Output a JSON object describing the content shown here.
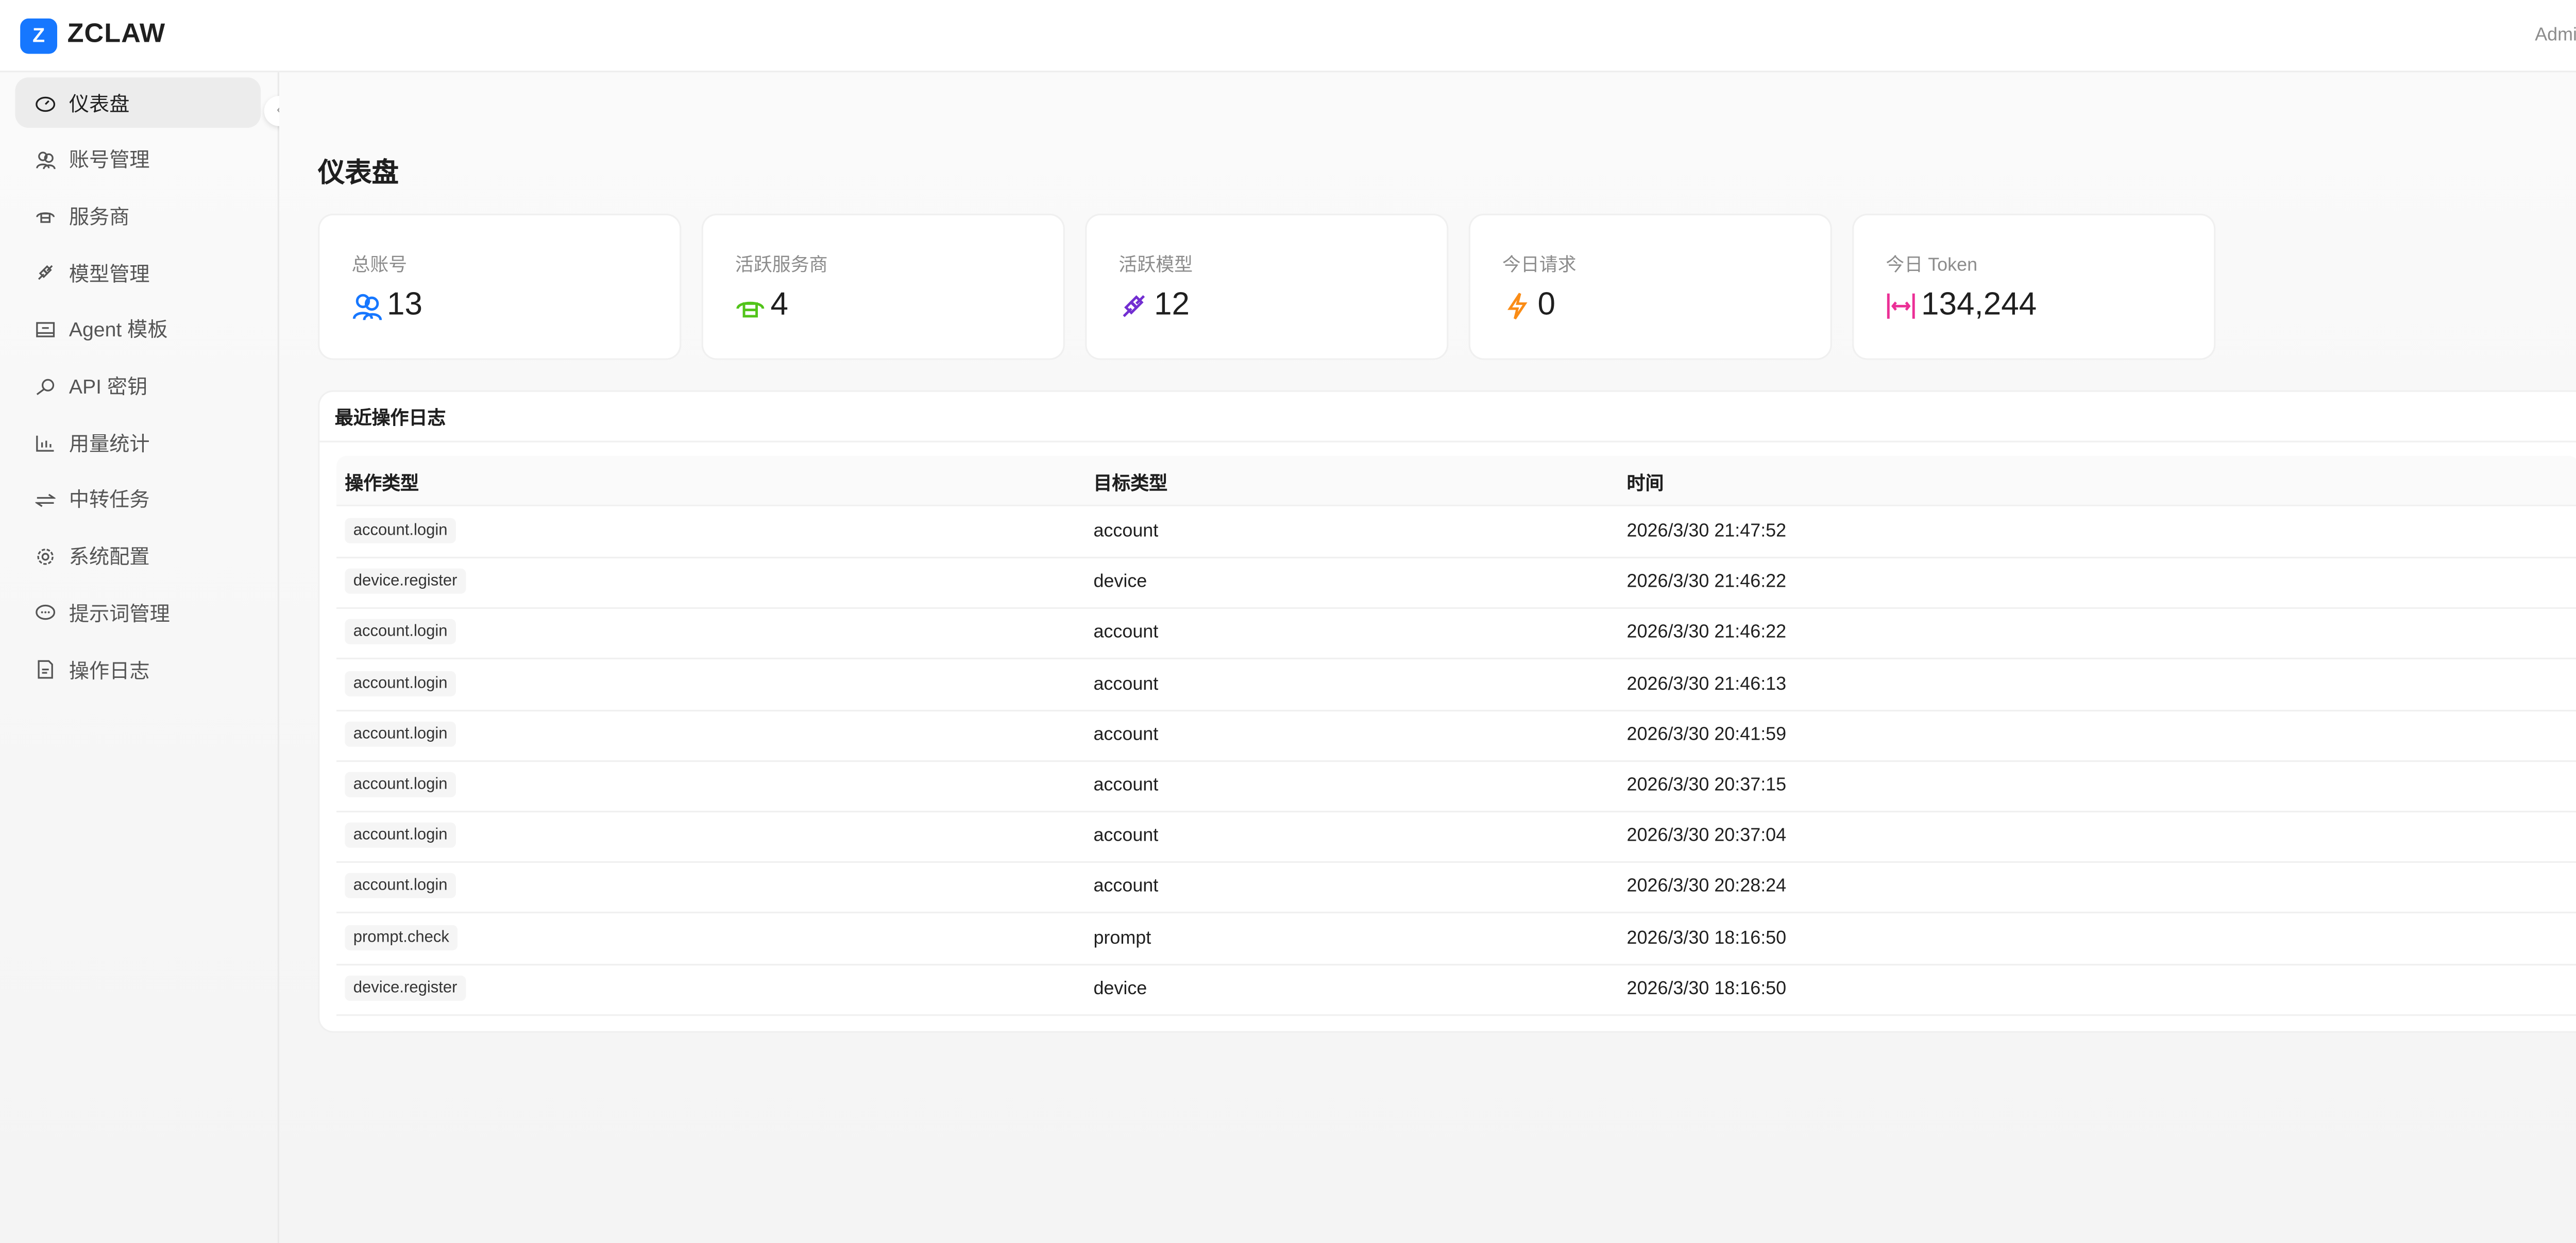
{
  "app": {
    "logo_letter": "Z",
    "brand": "ZCLAW",
    "user": "Admin"
  },
  "sidebar": {
    "items": [
      {
        "label": "仪表盘",
        "icon": "dashboard-icon",
        "active": true
      },
      {
        "label": "账号管理",
        "icon": "users-icon"
      },
      {
        "label": "服务商",
        "icon": "cloud-server-icon"
      },
      {
        "label": "模型管理",
        "icon": "api-plug-icon"
      },
      {
        "label": "Agent 模板",
        "icon": "template-icon"
      },
      {
        "label": "API 密钥",
        "icon": "key-icon"
      },
      {
        "label": "用量统计",
        "icon": "bar-chart-icon"
      },
      {
        "label": "中转任务",
        "icon": "swap-icon"
      },
      {
        "label": "系统配置",
        "icon": "gear-icon"
      },
      {
        "label": "提示词管理",
        "icon": "message-icon"
      },
      {
        "label": "操作日志",
        "icon": "file-text-icon"
      }
    ],
    "collapse_glyph": "‹"
  },
  "page": {
    "title": "仪表盘"
  },
  "stats": [
    {
      "label": "总账号",
      "value": "13",
      "icon": "users-icon",
      "color": "#1677ff"
    },
    {
      "label": "活跃服务商",
      "value": "4",
      "icon": "cloud-server-icon",
      "color": "#52c41a"
    },
    {
      "label": "活跃模型",
      "value": "12",
      "icon": "api-plug-icon",
      "color": "#722ed1"
    },
    {
      "label": "今日请求",
      "value": "0",
      "icon": "thunderbolt-icon",
      "color": "#fa8c16"
    },
    {
      "label": "今日 Token",
      "value": "134,244",
      "icon": "column-width-icon",
      "color": "#eb2f96"
    }
  ],
  "log": {
    "title": "最近操作日志",
    "columns": [
      "操作类型",
      "目标类型",
      "时间"
    ],
    "rows": [
      [
        "account.login",
        "account",
        "2026/3/30 21:47:52"
      ],
      [
        "device.register",
        "device",
        "2026/3/30 21:46:22"
      ],
      [
        "account.login",
        "account",
        "2026/3/30 21:46:22"
      ],
      [
        "account.login",
        "account",
        "2026/3/30 21:46:13"
      ],
      [
        "account.login",
        "account",
        "2026/3/30 20:41:59"
      ],
      [
        "account.login",
        "account",
        "2026/3/30 20:37:15"
      ],
      [
        "account.login",
        "account",
        "2026/3/30 20:37:04"
      ],
      [
        "account.login",
        "account",
        "2026/3/30 20:28:24"
      ],
      [
        "prompt.check",
        "prompt",
        "2026/3/30 18:16:50"
      ],
      [
        "device.register",
        "device",
        "2026/3/30 18:16:50"
      ]
    ]
  }
}
